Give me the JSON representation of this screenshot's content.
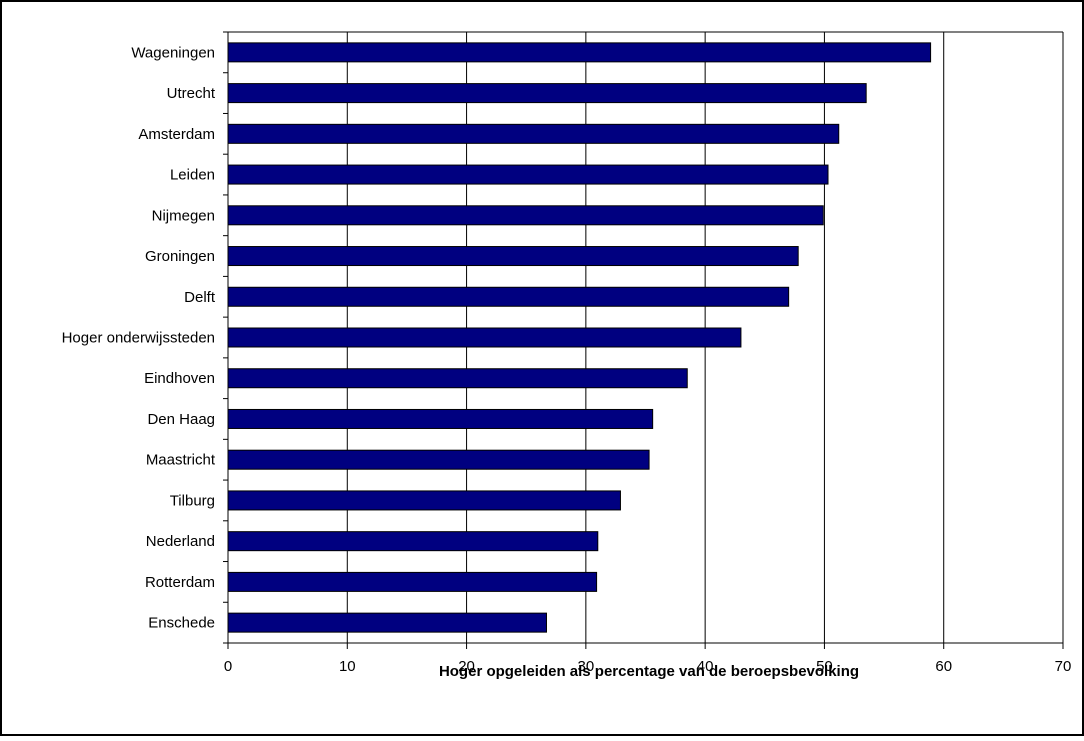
{
  "chart_data": {
    "type": "bar",
    "orientation": "horizontal",
    "title": "",
    "xlabel": "Hoger opgeleiden als percentage van de beroepsbevolking",
    "ylabel": "",
    "xlim": [
      0,
      70
    ],
    "x_ticks": [
      0,
      10,
      20,
      30,
      40,
      50,
      60,
      70
    ],
    "grid": "vertical",
    "legend": "none",
    "bar_color": "#000080",
    "categories": [
      "Wageningen",
      "Utrecht",
      "Amsterdam",
      "Leiden",
      "Nijmegen",
      "Groningen",
      "Delft",
      "Hoger onderwijssteden",
      "Eindhoven",
      "Den Haag",
      "Maastricht",
      "Tilburg",
      "Nederland",
      "Rotterdam",
      "Enschede"
    ],
    "values": [
      58.9,
      53.5,
      51.2,
      50.3,
      49.9,
      47.8,
      47.0,
      43.0,
      38.5,
      35.6,
      35.3,
      32.9,
      31.0,
      30.9,
      26.7
    ]
  }
}
